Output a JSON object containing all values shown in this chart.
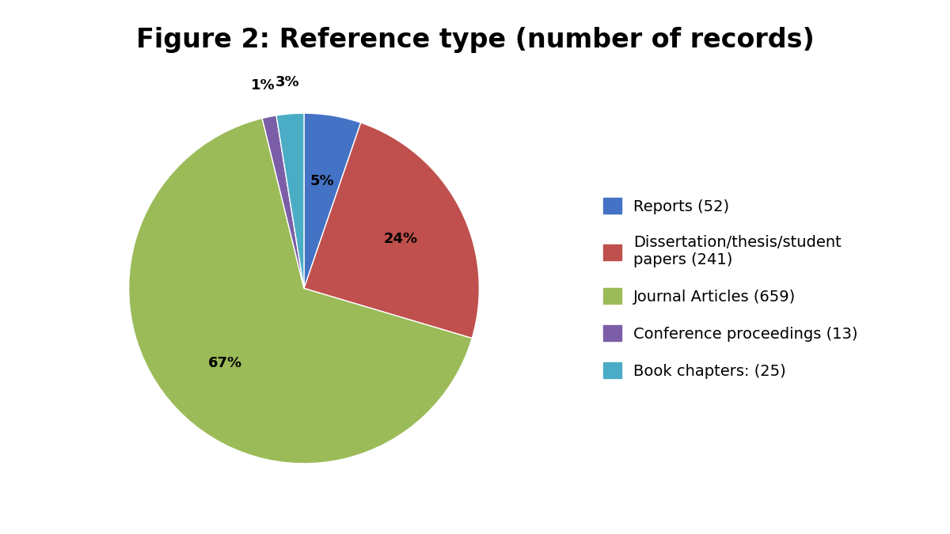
{
  "title": "Figure 2: Reference type (number of records)",
  "slices": [
    {
      "label": "Reports (52)",
      "value": 52,
      "color": "#4472C4",
      "pct": "5%"
    },
    {
      "label": "Dissertation/thesis/student\npapers (241)",
      "value": 241,
      "color": "#C0504D",
      "pct": "24%"
    },
    {
      "label": "Journal Articles (659)",
      "value": 659,
      "color": "#9BBB59",
      "pct": "67%"
    },
    {
      "label": "Conference proceedings (13)",
      "value": 13,
      "color": "#7B5EA7",
      "pct": "1%"
    },
    {
      "label": "Book chapters: (25)",
      "value": 25,
      "color": "#4BACC6",
      "pct": "3%"
    }
  ],
  "background_color": "#FFFFFF",
  "title_fontsize": 24,
  "legend_fontsize": 14
}
